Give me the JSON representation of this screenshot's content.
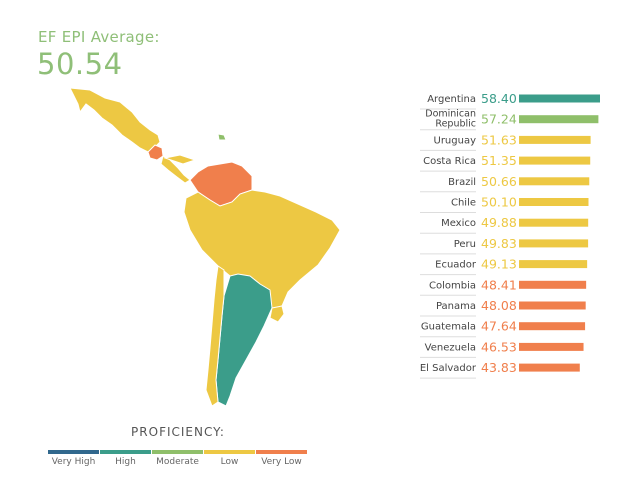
{
  "header": {
    "label": "EF EPI Average:",
    "value": "50.54"
  },
  "proficiency": {
    "title": "PROFICIENCY:",
    "levels": [
      {
        "name": "Very High",
        "color": "#31688d"
      },
      {
        "name": "High",
        "color": "#3b9d8a"
      },
      {
        "name": "Moderate",
        "color": "#8fbf6a"
      },
      {
        "name": "Low",
        "color": "#edc843"
      },
      {
        "name": "Very Low",
        "color": "#f07f4c"
      }
    ]
  },
  "chart_data": {
    "type": "bar",
    "orientation": "horizontal",
    "title": "EF EPI Average: 50.54",
    "categories": [
      "Argentina",
      "Dominican Republic",
      "Uruguay",
      "Costa Rica",
      "Brazil",
      "Chile",
      "Mexico",
      "Peru",
      "Ecuador",
      "Colombia",
      "Panama",
      "Guatemala",
      "Venezuela",
      "El Salvador"
    ],
    "label_lines": [
      [
        "Argentina"
      ],
      [
        "Dominican",
        "Republic"
      ],
      [
        "Uruguay"
      ],
      [
        "Costa Rica"
      ],
      [
        "Brazil"
      ],
      [
        "Chile"
      ],
      [
        "Mexico"
      ],
      [
        "Peru"
      ],
      [
        "Ecuador"
      ],
      [
        "Colombia"
      ],
      [
        "Panama"
      ],
      [
        "Guatemala"
      ],
      [
        "Venezuela"
      ],
      [
        "El Salvador"
      ]
    ],
    "values": [
      58.4,
      57.24,
      51.63,
      51.35,
      50.66,
      50.1,
      49.88,
      49.83,
      49.13,
      48.41,
      48.08,
      47.64,
      46.53,
      43.83
    ],
    "value_labels": [
      "58.40",
      "57.24",
      "51.63",
      "51.35",
      "50.66",
      "50.10",
      "49.88",
      "49.83",
      "49.13",
      "48.41",
      "48.08",
      "47.64",
      "46.53",
      "43.83"
    ],
    "levels": [
      "High",
      "Moderate",
      "Low",
      "Low",
      "Low",
      "Low",
      "Low",
      "Low",
      "Low",
      "Very Low",
      "Very Low",
      "Very Low",
      "Very Low",
      "Very Low"
    ]
  }
}
